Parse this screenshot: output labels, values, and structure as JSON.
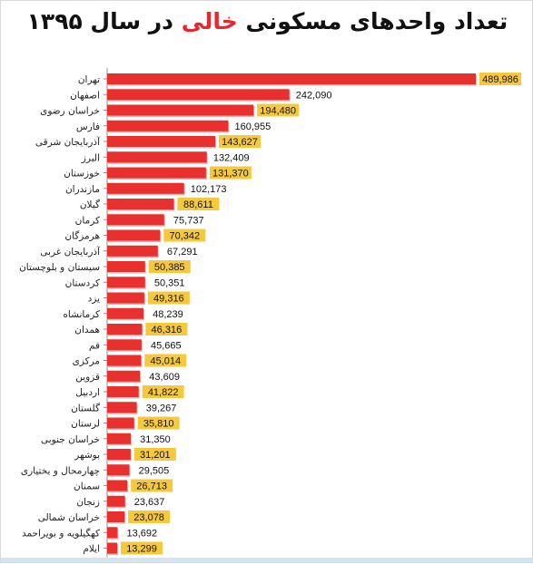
{
  "title": {
    "before": "تعداد واحدهای مسکونی",
    "highlight": "خالی",
    "after": "در سال ۱۳۹۵"
  },
  "colors": {
    "bar": "#e8302f",
    "bar_shadow": "#a8161a",
    "label_highlight": "#f6c93c",
    "title_highlight": "#e8262b"
  },
  "chart_data": {
    "type": "bar",
    "orientation": "horizontal",
    "categories": [
      "تهران",
      "اصفهان",
      "خراسان رضوی",
      "فارس",
      "آذربایجان شرقی",
      "البرز",
      "خوزستان",
      "مازندران",
      "گیلان",
      "کرمان",
      "هرمزگان",
      "آذربایجان غربی",
      "سیستان و بلوچستان",
      "کردستان",
      "یزد",
      "کرمانشاه",
      "همدان",
      "قم",
      "مرکزی",
      "قزوین",
      "اردبیل",
      "گلستان",
      "لرستان",
      "خراسان جنوبی",
      "بوشهر",
      "چهارمحال و بختیاری",
      "سمنان",
      "زنجان",
      "خراسان شمالی",
      "کهگیلویه و بویراحمد",
      "ایلام"
    ],
    "values": [
      489986,
      242090,
      194480,
      160955,
      143627,
      132409,
      131370,
      102173,
      88611,
      75737,
      70342,
      67291,
      50385,
      50351,
      49316,
      48239,
      46316,
      45665,
      45014,
      43609,
      41822,
      39267,
      35810,
      31350,
      31201,
      29505,
      26713,
      23637,
      23078,
      13692,
      13299
    ],
    "value_labels": [
      "489,986",
      "242,090",
      "194,480",
      "160,955",
      "143,627",
      "132,409",
      "131,370",
      "102,173",
      "88,611",
      "75,737",
      "70,342",
      "67,291",
      "50,385",
      "50,351",
      "49,316",
      "48,239",
      "46,316",
      "45,665",
      "45,014",
      "43,609",
      "41,822",
      "39,267",
      "35,810",
      "31,350",
      "31,201",
      "29,505",
      "26,713",
      "23,637",
      "23,078",
      "13,692",
      "13,299"
    ],
    "xlim": [
      0,
      489986
    ],
    "grid": false,
    "legend": "none"
  }
}
